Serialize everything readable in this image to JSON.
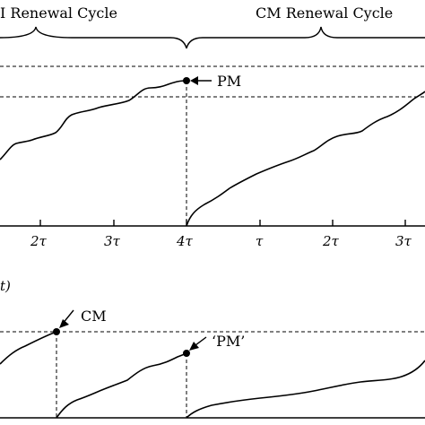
{
  "header": {
    "left_cycle_label": "I Renewal Cycle",
    "right_cycle_label": "CM Renewal Cycle"
  },
  "top_panel": {
    "tick_labels": [
      "2τ",
      "3τ",
      "4τ",
      "τ",
      "2τ",
      "3τ"
    ],
    "pm_label": "PM"
  },
  "bottom_panel": {
    "axis_fragment": "t)",
    "cm_label": "CM",
    "pm_quoted_label": "‘PM’"
  }
}
